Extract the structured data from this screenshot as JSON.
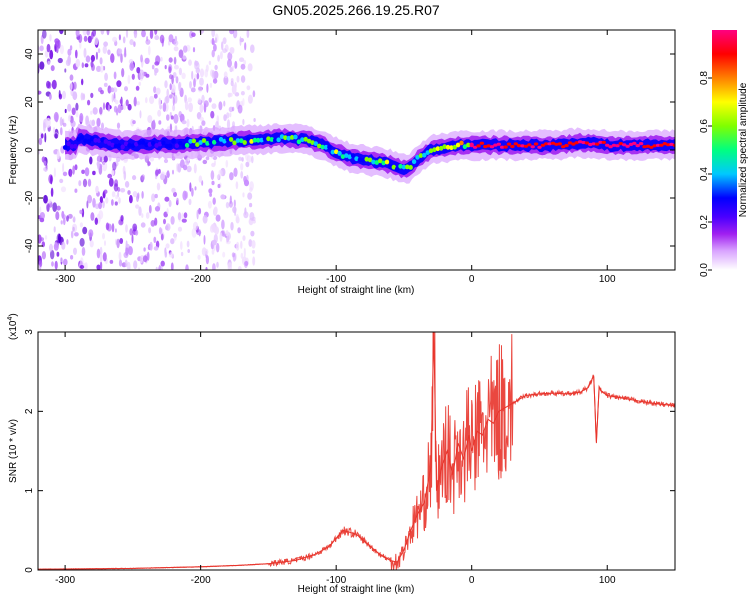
{
  "figure": {
    "title": "GN05.2025.266.19.25.R07"
  },
  "chart_data": [
    {
      "type": "heatmap",
      "xlabel": "Height of straight line (km)",
      "ylabel": "Frequency (Hz)",
      "xlim": [
        -320,
        150
      ],
      "ylim": [
        -50,
        50
      ],
      "xticks": [
        -300,
        -200,
        -100,
        0,
        100
      ],
      "xtick_labels": [
        "-300",
        "-200",
        "-100",
        "0",
        "100"
      ],
      "yticks": [
        -40,
        -20,
        0,
        20,
        40
      ],
      "ytick_labels": [
        "-40",
        "-20",
        "0",
        "20",
        "40"
      ],
      "colorbar": {
        "label": "Normalized spectral amplitude",
        "range": [
          0,
          1
        ],
        "ticks": [
          0,
          0.2,
          0.4,
          0.6,
          0.8
        ],
        "tick_labels": [
          "0.0",
          "0.2",
          "0.4",
          "0.6",
          "0.8"
        ],
        "colormap": [
          "#ffffff",
          "#d9a3ff",
          "#a020f0",
          "#4b00ff",
          "#0000ff",
          "#00c8ff",
          "#00ff80",
          "#80ff00",
          "#ffff00",
          "#ff8000",
          "#ff0000",
          "#ff0080"
        ]
      },
      "ridge_frequency": {
        "x": [
          -290,
          -260,
          -200,
          -170,
          -140,
          -120,
          -110,
          -100,
          -90,
          -80,
          -70,
          -60,
          -50,
          -45,
          -40,
          -30,
          -20,
          -10,
          0,
          20,
          40,
          60,
          80,
          90,
          100,
          120,
          150
        ],
        "y": [
          5,
          2,
          3,
          4,
          5,
          4,
          2,
          -1,
          -3,
          -4,
          -5,
          -6,
          -8,
          -7,
          -4,
          0,
          1,
          2,
          2,
          2,
          2,
          2,
          3,
          3,
          2,
          2,
          2
        ]
      },
      "background_noise_region": {
        "x_range": [
          -320,
          -160
        ],
        "y_range": [
          -50,
          50
        ]
      }
    },
    {
      "type": "line",
      "xlabel": "Height of straight line (km)",
      "ylabel": "SNR (10 * v/v)",
      "y_multiplier_label": "(x10",
      "y_multiplier_exp": "4",
      "y_multiplier_close": ")",
      "xlim": [
        -320,
        150
      ],
      "ylim": [
        0,
        3
      ],
      "xticks": [
        -300,
        -200,
        -100,
        0,
        100
      ],
      "xtick_labels": [
        "-300",
        "-200",
        "-100",
        "0",
        "100"
      ],
      "yticks": [
        0,
        1,
        2,
        3
      ],
      "ytick_labels": [
        "0",
        "1",
        "2",
        "3"
      ],
      "color": "#e8342b",
      "series": [
        {
          "x": [
            -320,
            -250,
            -200,
            -170,
            -150,
            -130,
            -115,
            -105,
            -95,
            -85,
            -75,
            -68,
            -60,
            -55,
            -50,
            -45,
            -40,
            -35,
            -30,
            -28,
            -26,
            -22,
            -18,
            -14,
            -10,
            -6,
            -2,
            0,
            4,
            8,
            12,
            16,
            20,
            25,
            30,
            35,
            40,
            50,
            60,
            70,
            80,
            86,
            90,
            92,
            94,
            96,
            100,
            110,
            120,
            130,
            140,
            150
          ],
          "values": [
            0.01,
            0.02,
            0.04,
            0.06,
            0.08,
            0.12,
            0.2,
            0.3,
            0.5,
            0.45,
            0.3,
            0.2,
            0.12,
            0.1,
            0.25,
            0.5,
            0.7,
            0.85,
            1.3,
            3.0,
            1.0,
            1.3,
            1.5,
            1.2,
            1.6,
            1.4,
            1.7,
            1.5,
            1.75,
            1.7,
            1.9,
            1.85,
            2.0,
            2.05,
            2.1,
            2.15,
            2.2,
            2.22,
            2.23,
            2.22,
            2.24,
            2.3,
            2.45,
            1.6,
            2.3,
            2.25,
            2.2,
            2.17,
            2.14,
            2.11,
            2.09,
            2.07
          ]
        }
      ]
    }
  ]
}
